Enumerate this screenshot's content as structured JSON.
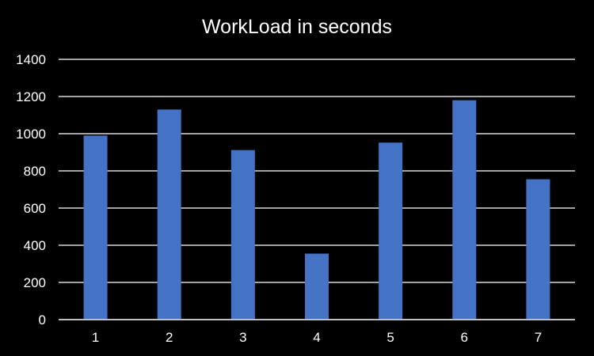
{
  "chart_data": {
    "type": "bar",
    "title": "WorkLoad in seconds",
    "xlabel": "",
    "ylabel": "",
    "categories": [
      "1",
      "2",
      "3",
      "4",
      "5",
      "6",
      "7"
    ],
    "series": [
      {
        "name": "WorkLoad",
        "values": [
          990,
          1130,
          912,
          355,
          952,
          1180,
          755
        ]
      }
    ],
    "ylim": [
      0,
      1400
    ],
    "yticks": [
      0,
      200,
      400,
      600,
      800,
      1000,
      1200,
      1400
    ],
    "grid": true,
    "legend": "none"
  },
  "colors": {
    "background": "#000000",
    "bar": "#4472c4",
    "grid": "#d9d9d9",
    "text": "#ffffff"
  }
}
